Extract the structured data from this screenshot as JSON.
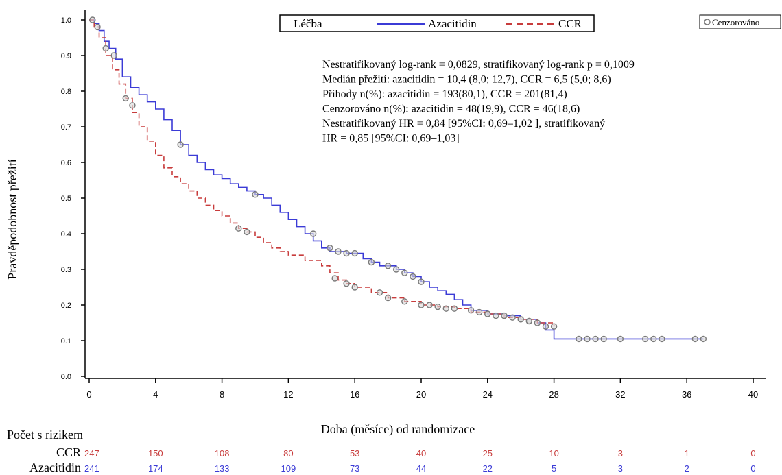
{
  "colors": {
    "azacitidin": "#3b3bd6",
    "ccr": "#c83c3c",
    "axis": "#000000",
    "censor_marker": "#7a7a7a"
  },
  "legend": {
    "title": "Léčba",
    "azacitidin_label": "Azacitidin",
    "ccr_label": "CCR",
    "censored_label": "Cenzorováno"
  },
  "stats_lines": [
    "Nestratifikovaný log-rank = 0,0829, stratifikovaný log-rank p = 0,1009",
    "Medián přežití: azacitidin = 10,4 (8,0; 12,7), CCR = 6,5 (5,0; 8,6)",
    "Příhody n(%): azacitidin = 193(80,1), CCR = 201(81,4)",
    "Cenzorováno n(%): azacitidin = 48(19,9), CCR = 46(18,6)",
    "Nestratifikovaný HR = 0,84 [95%CI: 0,69–1,02 ], stratifikovaný",
    "HR = 0,85 [95%CI: 0,69–1,03]"
  ],
  "risk_table": {
    "title": "Počet s rizikem",
    "rows": [
      {
        "label": "CCR",
        "color": "#c83c3c",
        "values": [
          "247",
          "150",
          "108",
          "80",
          "53",
          "40",
          "25",
          "10",
          "3",
          "1",
          "0"
        ]
      },
      {
        "label": "Azacitidin",
        "color": "#3b3bd6",
        "values": [
          "241",
          "174",
          "133",
          "109",
          "73",
          "44",
          "22",
          "5",
          "3",
          "2",
          "0"
        ]
      }
    ]
  },
  "chart_data": {
    "type": "line",
    "xlabel": "Doba (měsíce) od randomizace",
    "ylabel": "Pravděpodobnost přežití",
    "xlim": [
      0,
      40
    ],
    "ylim": [
      0,
      1.0
    ],
    "xticks": [
      "0",
      "4",
      "8",
      "12",
      "16",
      "20",
      "24",
      "28",
      "32",
      "36",
      "40"
    ],
    "yticks": [
      "0.0",
      "0.1",
      "0.2",
      "0.3",
      "0.4",
      "0.5",
      "0.6",
      "0.7",
      "0.8",
      "0.9",
      "1.0"
    ],
    "grid": false,
    "legend_position": "top",
    "series": [
      {
        "name": "Azacitidin",
        "style": "solid",
        "points": [
          [
            0,
            1.0
          ],
          [
            0.3,
            0.99
          ],
          [
            0.6,
            0.97
          ],
          [
            0.9,
            0.94
          ],
          [
            1.2,
            0.92
          ],
          [
            1.6,
            0.89
          ],
          [
            2.0,
            0.84
          ],
          [
            2.5,
            0.81
          ],
          [
            3.0,
            0.79
          ],
          [
            3.5,
            0.77
          ],
          [
            4.0,
            0.75
          ],
          [
            4.5,
            0.72
          ],
          [
            5.0,
            0.69
          ],
          [
            5.5,
            0.65
          ],
          [
            6.0,
            0.62
          ],
          [
            6.5,
            0.6
          ],
          [
            7.0,
            0.58
          ],
          [
            7.5,
            0.565
          ],
          [
            8.0,
            0.555
          ],
          [
            8.5,
            0.54
          ],
          [
            9.0,
            0.53
          ],
          [
            9.5,
            0.52
          ],
          [
            10.0,
            0.51
          ],
          [
            10.5,
            0.5
          ],
          [
            11.0,
            0.48
          ],
          [
            11.5,
            0.46
          ],
          [
            12.0,
            0.44
          ],
          [
            12.5,
            0.42
          ],
          [
            13.0,
            0.4
          ],
          [
            13.5,
            0.38
          ],
          [
            14.0,
            0.36
          ],
          [
            14.5,
            0.35
          ],
          [
            15.5,
            0.345
          ],
          [
            16.5,
            0.33
          ],
          [
            17.0,
            0.32
          ],
          [
            17.5,
            0.31
          ],
          [
            18.5,
            0.3
          ],
          [
            19.0,
            0.29
          ],
          [
            19.5,
            0.28
          ],
          [
            20.0,
            0.265
          ],
          [
            20.5,
            0.25
          ],
          [
            21.0,
            0.24
          ],
          [
            21.5,
            0.23
          ],
          [
            22.0,
            0.215
          ],
          [
            22.5,
            0.2
          ],
          [
            23.0,
            0.185
          ],
          [
            24.0,
            0.175
          ],
          [
            25.0,
            0.17
          ],
          [
            26.0,
            0.16
          ],
          [
            27.0,
            0.15
          ],
          [
            27.5,
            0.13
          ],
          [
            28.0,
            0.105
          ],
          [
            37.0,
            0.105
          ]
        ]
      },
      {
        "name": "CCR",
        "style": "dashed",
        "points": [
          [
            0,
            1.0
          ],
          [
            0.3,
            0.98
          ],
          [
            0.6,
            0.95
          ],
          [
            1.0,
            0.9
          ],
          [
            1.4,
            0.86
          ],
          [
            1.8,
            0.82
          ],
          [
            2.2,
            0.78
          ],
          [
            2.6,
            0.74
          ],
          [
            3.0,
            0.7
          ],
          [
            3.5,
            0.66
          ],
          [
            4.0,
            0.62
          ],
          [
            4.5,
            0.585
          ],
          [
            5.0,
            0.56
          ],
          [
            5.5,
            0.54
          ],
          [
            6.0,
            0.52
          ],
          [
            6.5,
            0.5
          ],
          [
            7.0,
            0.48
          ],
          [
            7.5,
            0.465
          ],
          [
            8.0,
            0.45
          ],
          [
            8.5,
            0.43
          ],
          [
            9.0,
            0.415
          ],
          [
            9.5,
            0.405
          ],
          [
            10.0,
            0.39
          ],
          [
            10.5,
            0.375
          ],
          [
            11.0,
            0.36
          ],
          [
            11.5,
            0.35
          ],
          [
            12.0,
            0.34
          ],
          [
            13.0,
            0.325
          ],
          [
            14.0,
            0.31
          ],
          [
            14.5,
            0.29
          ],
          [
            15.0,
            0.27
          ],
          [
            15.5,
            0.26
          ],
          [
            16.0,
            0.25
          ],
          [
            17.0,
            0.235
          ],
          [
            18.0,
            0.22
          ],
          [
            19.0,
            0.21
          ],
          [
            20.0,
            0.2
          ],
          [
            21.0,
            0.195
          ],
          [
            22.0,
            0.19
          ],
          [
            23.0,
            0.18
          ],
          [
            24.0,
            0.175
          ],
          [
            25.0,
            0.165
          ],
          [
            26.0,
            0.16
          ],
          [
            27.0,
            0.15
          ],
          [
            28.0,
            0.14
          ]
        ]
      }
    ],
    "censored": {
      "Azacitidin": [
        [
          1.5,
          0.9
        ],
        [
          5.5,
          0.65
        ],
        [
          10.0,
          0.51
        ],
        [
          13.5,
          0.4
        ],
        [
          14.5,
          0.36
        ],
        [
          15.0,
          0.35
        ],
        [
          15.5,
          0.345
        ],
        [
          16.0,
          0.345
        ],
        [
          17.0,
          0.32
        ],
        [
          18.0,
          0.31
        ],
        [
          18.5,
          0.3
        ],
        [
          19.0,
          0.29
        ],
        [
          19.5,
          0.28
        ],
        [
          20.0,
          0.265
        ],
        [
          23.0,
          0.185
        ],
        [
          23.5,
          0.18
        ],
        [
          24.0,
          0.175
        ],
        [
          24.5,
          0.17
        ],
        [
          25.0,
          0.17
        ],
        [
          26.0,
          0.16
        ],
        [
          26.5,
          0.155
        ],
        [
          29.5,
          0.105
        ],
        [
          30.0,
          0.105
        ],
        [
          30.5,
          0.105
        ],
        [
          31.0,
          0.105
        ],
        [
          32.0,
          0.105
        ],
        [
          33.5,
          0.105
        ],
        [
          34.0,
          0.105
        ],
        [
          34.5,
          0.105
        ],
        [
          36.5,
          0.105
        ],
        [
          37.0,
          0.105
        ]
      ],
      "CCR": [
        [
          0.2,
          1.0
        ],
        [
          0.5,
          0.98
        ],
        [
          1.0,
          0.92
        ],
        [
          2.2,
          0.78
        ],
        [
          2.6,
          0.76
        ],
        [
          9.0,
          0.415
        ],
        [
          9.5,
          0.405
        ],
        [
          14.8,
          0.275
        ],
        [
          15.5,
          0.26
        ],
        [
          16.0,
          0.25
        ],
        [
          17.5,
          0.235
        ],
        [
          18.0,
          0.22
        ],
        [
          19.0,
          0.21
        ],
        [
          20.0,
          0.2
        ],
        [
          20.5,
          0.2
        ],
        [
          21.0,
          0.195
        ],
        [
          21.5,
          0.19
        ],
        [
          22.0,
          0.19
        ],
        [
          24.0,
          0.175
        ],
        [
          25.0,
          0.17
        ],
        [
          25.5,
          0.165
        ],
        [
          26.0,
          0.16
        ],
        [
          26.5,
          0.155
        ],
        [
          27.0,
          0.15
        ],
        [
          27.5,
          0.14
        ],
        [
          28.0,
          0.14
        ]
      ]
    }
  }
}
